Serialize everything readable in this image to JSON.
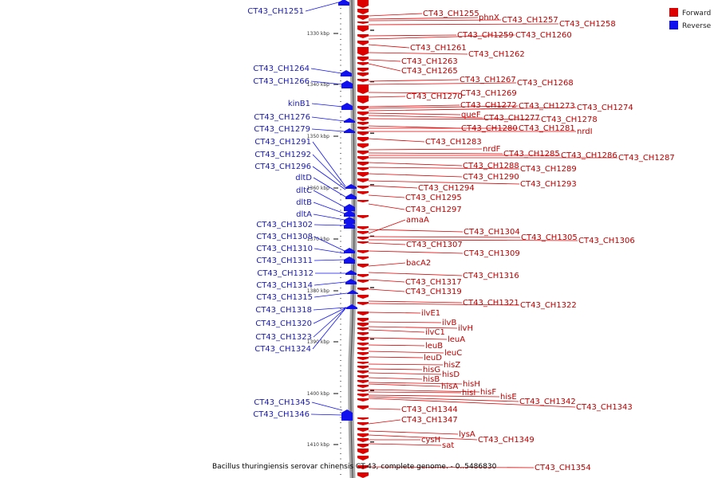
{
  "colors": {
    "forward": "#dd0000",
    "reverse": "#1111ee",
    "forward_label": "#bb0000",
    "reverse_label": "#1a1ab0",
    "axis": "#888888"
  },
  "legend": {
    "forward": "Forward",
    "reverse": "Reverse"
  },
  "caption": "Bacillus thuringiensis serovar chinensis CT-43, complete genome. - 0..5486830",
  "ticks": [
    "1330 kbp",
    "1340 kbp",
    "1350 kbp",
    "1360 kbp",
    "1370 kbp",
    "1380 kbp",
    "1390 kbp",
    "1400 kbp",
    "1410 kbp"
  ],
  "reverse_genes": [
    "CT43_CH1251",
    "CT43_CH1264",
    "CT43_CH1266",
    "kinB1",
    "CT43_CH1276",
    "CT43_CH1279",
    "CT43_CH1291",
    "CT43_CH1292",
    "CT43_CH1296",
    "dltD",
    "dltC",
    "dltB",
    "dltA",
    "CT43_CH1302",
    "CT43_CH1308",
    "CT43_CH1310",
    "CT43_CH1311",
    "CT43_CH1312",
    "CT43_CH1314",
    "CT43_CH1315",
    "CT43_CH1318",
    "CT43_CH1320",
    "CT43_CH1323",
    "CT43_CH1324",
    "CT43_CH1345",
    "CT43_CH1346"
  ],
  "forward_genes": [
    "CT43_CH1255",
    "phnX",
    "CT43_CH1257",
    "CT43_CH1258",
    "CT43_CH1259",
    "CT43_CH1260",
    "CT43_CH1261",
    "CT43_CH1262",
    "CT43_CH1263",
    "CT43_CH1265",
    "CT43_CH1267",
    "CT43_CH1268",
    "CT43_CH1269",
    "CT43_CH1270",
    "CT43_CH1272",
    "CT43_CH1273",
    "CT43_CH1274",
    "queF",
    "CT43_CH1277",
    "CT43_CH1278",
    "CT43_CH1280",
    "CT43_CH1281",
    "nrdI",
    "CT43_CH1283",
    "nrdF",
    "CT43_CH1285",
    "CT43_CH1286",
    "CT43_CH1287",
    "CT43_CH1288",
    "CT43_CH1289",
    "CT43_CH1290",
    "CT43_CH1293",
    "CT43_CH1294",
    "CT43_CH1295",
    "CT43_CH1297",
    "amaA",
    "CT43_CH1304",
    "CT43_CH1305",
    "CT43_CH1306",
    "CT43_CH1307",
    "CT43_CH1309",
    "bacA2",
    "CT43_CH1316",
    "CT43_CH1317",
    "CT43_CH1319",
    "CT43_CH1321",
    "CT43_CH1322",
    "ilvE1",
    "ilvB",
    "ilvH",
    "ilvC1",
    "leuA",
    "leuB",
    "leuC",
    "leuD",
    "hisZ",
    "hisG",
    "hisD",
    "hisB",
    "hisH",
    "hisA",
    "hisF",
    "hisI",
    "hisE",
    "CT43_CH1342",
    "CT43_CH1343",
    "CT43_CH1344",
    "CT43_CH1347",
    "lysA",
    "CT43_CH1349",
    "cysH",
    "sat",
    "CT43_CH1354"
  ]
}
